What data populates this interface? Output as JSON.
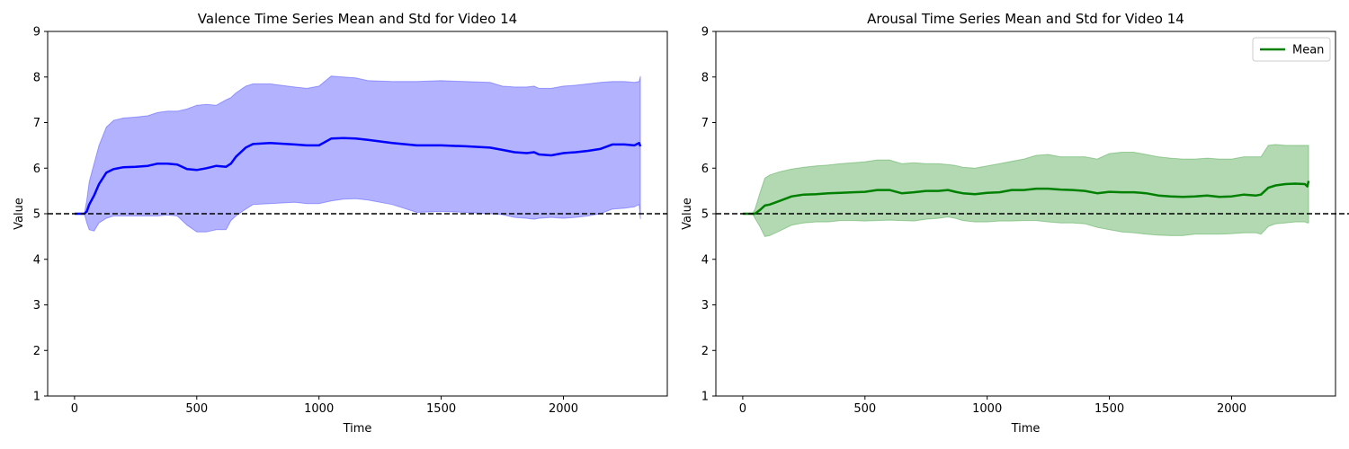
{
  "chart_data": [
    {
      "type": "line",
      "title": "Valence Time Series Mean and Std for Video 14",
      "xlabel": "Time",
      "ylabel": "Value",
      "xlim": [
        -110,
        2425
      ],
      "ylim": [
        1,
        9
      ],
      "xticks": [
        0,
        500,
        1000,
        1500,
        2000
      ],
      "yticks": [
        1,
        2,
        3,
        4,
        5,
        6,
        7,
        8,
        9
      ],
      "reference_line": {
        "y": 5,
        "style": "dashed",
        "color": "#000000"
      },
      "grid": false,
      "legend": null,
      "series": [
        {
          "color": "#0000ff",
          "fill_color": "#0000ff",
          "fill_alpha": 0.3,
          "x": [
            0,
            40,
            50,
            60,
            80,
            100,
            130,
            160,
            200,
            250,
            300,
            340,
            380,
            420,
            460,
            500,
            540,
            580,
            620,
            640,
            660,
            700,
            730,
            800,
            900,
            950,
            1000,
            1050,
            1100,
            1150,
            1200,
            1300,
            1400,
            1500,
            1600,
            1700,
            1750,
            1800,
            1850,
            1880,
            1900,
            1950,
            2000,
            2050,
            2100,
            2150,
            2200,
            2250,
            2290,
            2310,
            2315
          ],
          "mean": [
            5.0,
            5.0,
            5.05,
            5.2,
            5.4,
            5.65,
            5.9,
            5.98,
            6.02,
            6.03,
            6.05,
            6.1,
            6.1,
            6.08,
            5.98,
            5.96,
            6.0,
            6.05,
            6.03,
            6.1,
            6.25,
            6.45,
            6.53,
            6.55,
            6.52,
            6.5,
            6.5,
            6.65,
            6.66,
            6.65,
            6.62,
            6.55,
            6.5,
            6.5,
            6.48,
            6.45,
            6.4,
            6.35,
            6.33,
            6.35,
            6.3,
            6.28,
            6.33,
            6.35,
            6.38,
            6.42,
            6.52,
            6.52,
            6.5,
            6.55,
            6.48
          ],
          "upper": [
            5.0,
            5.0,
            5.3,
            5.7,
            6.1,
            6.5,
            6.9,
            7.05,
            7.1,
            7.12,
            7.15,
            7.22,
            7.25,
            7.25,
            7.3,
            7.38,
            7.4,
            7.38,
            7.5,
            7.55,
            7.65,
            7.8,
            7.85,
            7.85,
            7.78,
            7.75,
            7.8,
            8.02,
            8.0,
            7.98,
            7.92,
            7.9,
            7.9,
            7.92,
            7.9,
            7.88,
            7.8,
            7.78,
            7.78,
            7.8,
            7.75,
            7.75,
            7.8,
            7.82,
            7.85,
            7.88,
            7.9,
            7.9,
            7.88,
            7.9,
            8.02
          ],
          "lower": [
            5.0,
            5.0,
            4.8,
            4.65,
            4.62,
            4.8,
            4.9,
            4.95,
            4.95,
            4.95,
            4.95,
            4.95,
            4.97,
            4.95,
            4.75,
            4.6,
            4.6,
            4.65,
            4.65,
            4.85,
            4.95,
            5.1,
            5.2,
            5.22,
            5.25,
            5.22,
            5.22,
            5.28,
            5.32,
            5.33,
            5.3,
            5.2,
            5.03,
            5.05,
            5.03,
            5.0,
            4.98,
            4.92,
            4.9,
            4.88,
            4.9,
            4.92,
            4.9,
            4.92,
            4.95,
            5.0,
            5.1,
            5.12,
            5.15,
            5.2,
            4.88
          ]
        }
      ]
    },
    {
      "type": "line",
      "title": "Arousal Time Series Mean and Std for Video 14",
      "xlabel": "Time",
      "ylabel": "Value",
      "xlim": [
        -110,
        2425
      ],
      "ylim": [
        1,
        9
      ],
      "xticks": [
        0,
        500,
        1000,
        1500,
        2000
      ],
      "yticks": [
        1,
        2,
        3,
        4,
        5,
        6,
        7,
        8,
        9
      ],
      "reference_line": {
        "y": 5,
        "style": "dashed",
        "color": "#000000"
      },
      "grid": false,
      "legend": {
        "position": "top-right"
      },
      "series": [
        {
          "name": "Mean",
          "color": "#008000",
          "fill_color": "#008000",
          "fill_alpha": 0.3,
          "x": [
            0,
            40,
            50,
            70,
            90,
            110,
            150,
            200,
            250,
            300,
            350,
            400,
            450,
            500,
            550,
            600,
            650,
            700,
            750,
            800,
            840,
            870,
            900,
            950,
            1000,
            1050,
            1100,
            1150,
            1200,
            1250,
            1300,
            1350,
            1400,
            1450,
            1500,
            1550,
            1600,
            1650,
            1700,
            1750,
            1800,
            1850,
            1900,
            1950,
            2000,
            2050,
            2100,
            2120,
            2150,
            2180,
            2220,
            2260,
            2300,
            2310,
            2315
          ],
          "mean": [
            5.0,
            5.0,
            5.0,
            5.08,
            5.18,
            5.2,
            5.28,
            5.38,
            5.42,
            5.43,
            5.45,
            5.46,
            5.47,
            5.48,
            5.52,
            5.52,
            5.45,
            5.47,
            5.5,
            5.5,
            5.52,
            5.48,
            5.45,
            5.43,
            5.46,
            5.47,
            5.52,
            5.52,
            5.55,
            5.55,
            5.53,
            5.52,
            5.5,
            5.45,
            5.48,
            5.47,
            5.47,
            5.45,
            5.4,
            5.38,
            5.37,
            5.38,
            5.4,
            5.37,
            5.38,
            5.42,
            5.4,
            5.42,
            5.57,
            5.62,
            5.65,
            5.66,
            5.65,
            5.6,
            5.72
          ],
          "upper": [
            5.0,
            5.0,
            5.1,
            5.45,
            5.78,
            5.85,
            5.92,
            5.98,
            6.02,
            6.05,
            6.07,
            6.1,
            6.12,
            6.14,
            6.18,
            6.18,
            6.1,
            6.12,
            6.1,
            6.1,
            6.08,
            6.06,
            6.02,
            6.0,
            6.05,
            6.1,
            6.15,
            6.2,
            6.28,
            6.3,
            6.25,
            6.25,
            6.25,
            6.2,
            6.32,
            6.35,
            6.35,
            6.3,
            6.25,
            6.22,
            6.2,
            6.2,
            6.22,
            6.2,
            6.2,
            6.25,
            6.25,
            6.25,
            6.5,
            6.52,
            6.5,
            6.5,
            6.5,
            6.5,
            6.5
          ],
          "lower": [
            5.0,
            5.0,
            4.9,
            4.72,
            4.5,
            4.52,
            4.62,
            4.75,
            4.8,
            4.82,
            4.82,
            4.85,
            4.85,
            4.84,
            4.85,
            4.86,
            4.85,
            4.84,
            4.88,
            4.9,
            4.93,
            4.9,
            4.85,
            4.82,
            4.82,
            4.84,
            4.84,
            4.85,
            4.85,
            4.82,
            4.8,
            4.8,
            4.78,
            4.7,
            4.65,
            4.6,
            4.58,
            4.55,
            4.53,
            4.52,
            4.52,
            4.55,
            4.55,
            4.55,
            4.56,
            4.58,
            4.58,
            4.55,
            4.72,
            4.78,
            4.8,
            4.82,
            4.82,
            4.8,
            4.8
          ]
        }
      ]
    }
  ]
}
